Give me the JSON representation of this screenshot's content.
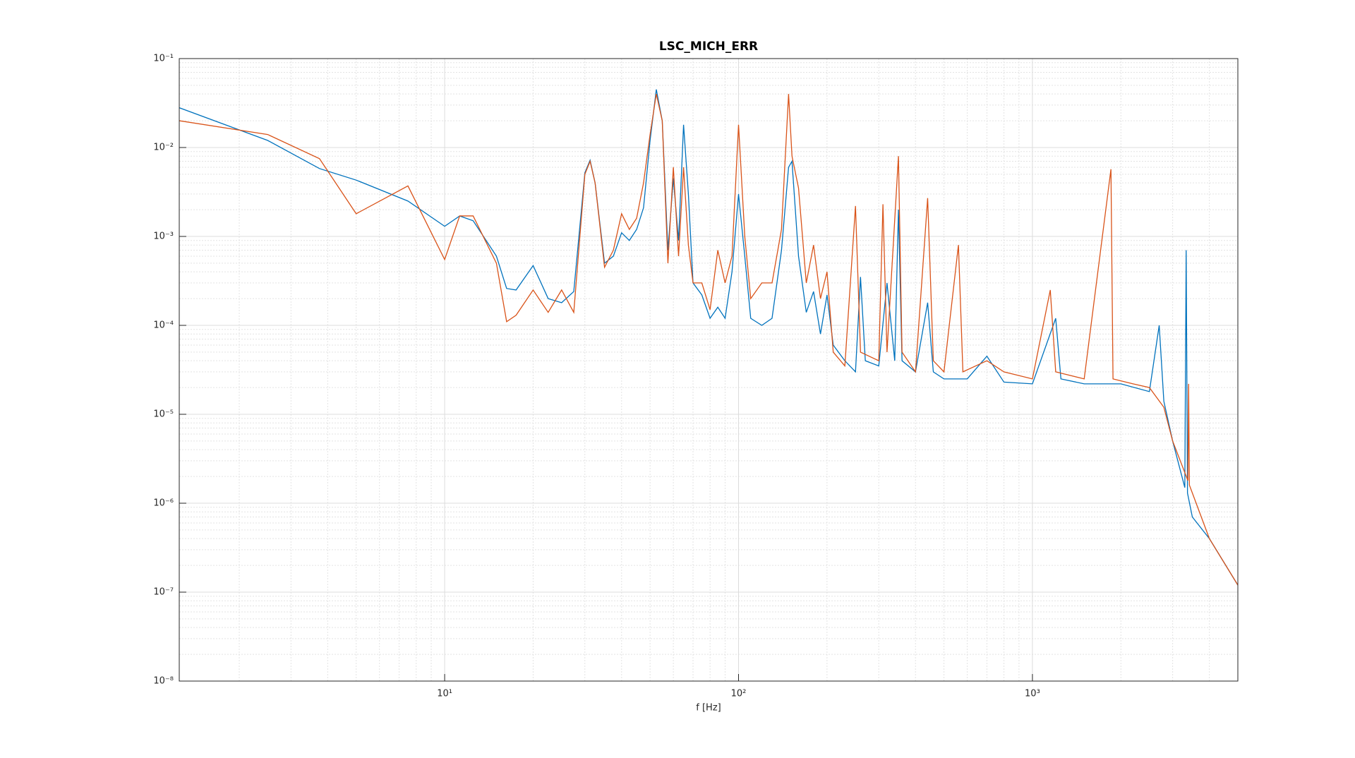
{
  "chart_data": {
    "type": "line",
    "title": "LSC_MICH_ERR",
    "x_label": "f [Hz]",
    "log_x": true,
    "log_y": true,
    "grid": true,
    "minor_grid": true,
    "xlim": [
      1.25,
      5000
    ],
    "ylim": [
      1e-08,
      0.1
    ],
    "xticks": [
      {
        "value": 10,
        "label": "10¹"
      },
      {
        "value": 100,
        "label": "10²"
      },
      {
        "value": 1000,
        "label": "10³"
      }
    ],
    "yticks": [
      {
        "value": 1e-08,
        "label": "10⁻⁸"
      },
      {
        "value": 1e-07,
        "label": "10⁻⁷"
      },
      {
        "value": 1e-06,
        "label": "10⁻⁶"
      },
      {
        "value": 1e-05,
        "label": "10⁻⁵"
      },
      {
        "value": 0.0001,
        "label": "10⁻⁴"
      },
      {
        "value": 0.001,
        "label": "10⁻³"
      },
      {
        "value": 0.01,
        "label": "10⁻²"
      },
      {
        "value": 0.1,
        "label": "10⁻¹"
      }
    ],
    "series": [
      {
        "color": "#0072bd",
        "x": [
          1.25,
          2.5,
          3.75,
          5,
          7.5,
          10,
          11.25,
          12.5,
          15,
          16.25,
          17.5,
          20,
          22.5,
          25,
          27.5,
          30,
          31.25,
          32.5,
          35,
          37.5,
          40,
          42.5,
          45,
          47.5,
          50,
          52.5,
          55,
          57.5,
          60,
          62.5,
          65,
          67.5,
          70,
          75,
          80,
          85,
          90,
          95,
          100,
          105,
          110,
          120,
          130,
          140,
          148,
          152,
          160,
          170,
          180,
          190,
          200,
          210,
          230,
          250,
          260,
          270,
          300,
          320,
          340,
          350,
          360,
          400,
          440,
          460,
          500,
          600,
          700,
          800,
          1000,
          1200,
          1250,
          1500,
          2000,
          2500,
          2700,
          2800,
          3000,
          3300,
          3335,
          3370,
          3500,
          4000,
          5000
        ],
        "values": [
          0.028,
          0.012,
          0.0058,
          0.0043,
          0.0025,
          0.0013,
          0.0017,
          0.0015,
          0.0006,
          0.00026,
          0.00025,
          0.00047,
          0.0002,
          0.00018,
          0.00024,
          0.0052,
          0.0072,
          0.004,
          0.0005,
          0.0006,
          0.0011,
          0.0009,
          0.0012,
          0.0021,
          0.012,
          0.045,
          0.02,
          0.0007,
          0.0045,
          0.0009,
          0.018,
          0.003,
          0.0003,
          0.00022,
          0.00012,
          0.00016,
          0.00012,
          0.0004,
          0.003,
          0.0006,
          0.00012,
          0.0001,
          0.00012,
          0.0007,
          0.006,
          0.007,
          0.0006,
          0.00014,
          0.00024,
          8e-05,
          0.00022,
          6e-05,
          4e-05,
          3e-05,
          0.00035,
          4e-05,
          3.5e-05,
          0.0003,
          4e-05,
          0.002,
          4e-05,
          3e-05,
          0.00018,
          3e-05,
          2.5e-05,
          2.5e-05,
          4.5e-05,
          2.3e-05,
          2.2e-05,
          0.00012,
          2.5e-05,
          2.2e-05,
          2.2e-05,
          1.8e-05,
          0.0001,
          1.4e-05,
          5e-06,
          1.5e-06,
          0.0007,
          1.3e-06,
          7e-07,
          4e-07,
          1.2e-07
        ]
      },
      {
        "color": "#d95319",
        "x": [
          1.25,
          2.5,
          3.75,
          5,
          7.5,
          10,
          11.25,
          12.5,
          15,
          16.25,
          17.5,
          20,
          22.5,
          25,
          27.5,
          30,
          31.25,
          32.5,
          35,
          37.5,
          40,
          42.5,
          45,
          47.5,
          50,
          52.5,
          55,
          57.5,
          60,
          62.5,
          65,
          67.5,
          70,
          75,
          80,
          85,
          90,
          95,
          100,
          105,
          110,
          120,
          130,
          140,
          148,
          152,
          160,
          170,
          180,
          190,
          200,
          210,
          230,
          250,
          260,
          300,
          310,
          320,
          350,
          360,
          400,
          440,
          460,
          500,
          560,
          580,
          700,
          800,
          1000,
          1150,
          1200,
          1500,
          1850,
          1880,
          2200,
          2500,
          2800,
          3000,
          3380,
          3400,
          3420,
          4000,
          5000
        ],
        "values": [
          0.02,
          0.014,
          0.0075,
          0.0018,
          0.0037,
          0.00055,
          0.0017,
          0.0017,
          0.0005,
          0.00011,
          0.00013,
          0.00025,
          0.00014,
          0.00025,
          0.00014,
          0.005,
          0.007,
          0.004,
          0.00045,
          0.0007,
          0.0018,
          0.0012,
          0.0016,
          0.004,
          0.014,
          0.04,
          0.02,
          0.0005,
          0.006,
          0.0006,
          0.006,
          0.0008,
          0.0003,
          0.0003,
          0.00015,
          0.0007,
          0.0003,
          0.0006,
          0.018,
          0.001,
          0.0002,
          0.0003,
          0.0003,
          0.0012,
          0.04,
          0.008,
          0.0035,
          0.0003,
          0.0008,
          0.0002,
          0.0004,
          5e-05,
          3.5e-05,
          0.0022,
          5e-05,
          4e-05,
          0.0023,
          5e-05,
          0.008,
          5e-05,
          3e-05,
          0.0027,
          4e-05,
          3e-05,
          0.0008,
          3e-05,
          4e-05,
          3e-05,
          2.5e-05,
          0.00025,
          3e-05,
          2.5e-05,
          0.0057,
          2.5e-05,
          2.2e-05,
          2e-05,
          1.2e-05,
          5e-06,
          1.8e-06,
          2.2e-05,
          1.6e-06,
          4e-07,
          1.2e-07
        ]
      }
    ]
  }
}
